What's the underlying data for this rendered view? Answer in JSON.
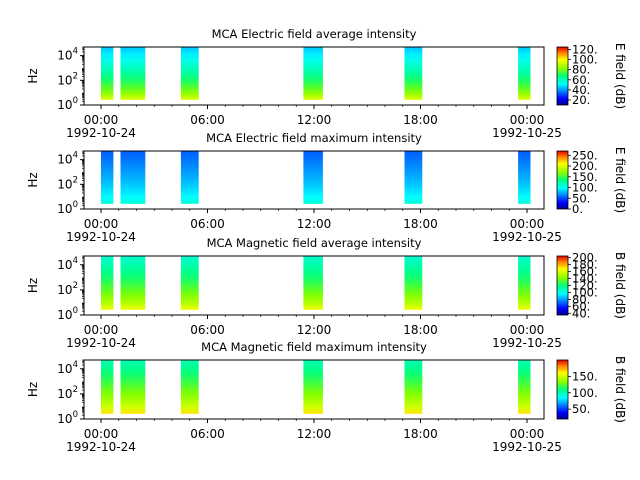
{
  "figure": {
    "x_ticks": [
      "00:00",
      "06:00",
      "12:00",
      "18:00",
      "00:00"
    ],
    "date_start": "1992-10-24",
    "date_end": "1992-10-25",
    "x_unit": "hours"
  },
  "chart_data": [
    {
      "type": "heatmap",
      "title": "MCA  Electric field average intensity",
      "ylabel": "Hz",
      "y_scale": "log",
      "ylim": [
        1,
        50000
      ],
      "y_ticks": [
        {
          "base": "10",
          "exp": "0"
        },
        {
          "base": "10",
          "exp": "2"
        },
        {
          "base": "10",
          "exp": "4"
        }
      ],
      "xlim": [
        0,
        25
      ],
      "segments_hours": [
        [
          0.0,
          0.7
        ],
        [
          1.1,
          2.5
        ],
        [
          4.5,
          5.5
        ],
        [
          11.4,
          12.5
        ],
        [
          17.1,
          18.1
        ],
        [
          23.5,
          24.2
        ]
      ],
      "colorbar_label": "E field (dB)",
      "colorbar_range": [
        10,
        125
      ],
      "colorbar_ticks": [
        "120.",
        "100.",
        "80.",
        "60.",
        "40.",
        "20."
      ],
      "intensity_low_freq": 95,
      "intensity_high_freq": 45
    },
    {
      "type": "heatmap",
      "title": "MCA  Electric field maximum intensity",
      "ylabel": "Hz",
      "y_scale": "log",
      "ylim": [
        1,
        50000
      ],
      "y_ticks": [
        {
          "base": "10",
          "exp": "0"
        },
        {
          "base": "10",
          "exp": "2"
        },
        {
          "base": "10",
          "exp": "4"
        }
      ],
      "xlim": [
        0,
        25
      ],
      "segments_hours": [
        [
          0.0,
          0.7
        ],
        [
          1.1,
          2.5
        ],
        [
          4.5,
          5.5
        ],
        [
          11.4,
          12.5
        ],
        [
          17.1,
          18.1
        ],
        [
          23.5,
          24.2
        ]
      ],
      "colorbar_label": "E field (dB)",
      "colorbar_range": [
        0,
        270
      ],
      "colorbar_ticks": [
        "250.",
        "200.",
        "150.",
        "100.",
        "50.",
        "0."
      ],
      "intensity_low_freq": 110,
      "intensity_high_freq": 55
    },
    {
      "type": "heatmap",
      "title": "MCA  Magnetic field average intensity",
      "ylabel": "Hz",
      "y_scale": "log",
      "ylim": [
        1,
        50000
      ],
      "y_ticks": [
        {
          "base": "10",
          "exp": "0"
        },
        {
          "base": "10",
          "exp": "2"
        },
        {
          "base": "10",
          "exp": "4"
        }
      ],
      "xlim": [
        0,
        25
      ],
      "segments_hours": [
        [
          0.0,
          0.7
        ],
        [
          1.1,
          2.5
        ],
        [
          4.5,
          5.5
        ],
        [
          11.4,
          12.5
        ],
        [
          17.1,
          18.1
        ],
        [
          23.5,
          24.2
        ]
      ],
      "colorbar_label": "B field (dB)",
      "colorbar_range": [
        35,
        205
      ],
      "colorbar_ticks": [
        "200.",
        "180.",
        "160.",
        "140.",
        "120.",
        "100.",
        "80.",
        "60.",
        "40."
      ],
      "intensity_low_freq": 165,
      "intensity_high_freq": 105
    },
    {
      "type": "heatmap",
      "title": "MCA  Magnetic field maximum intensity",
      "ylabel": "Hz",
      "y_scale": "log",
      "ylim": [
        1,
        50000
      ],
      "y_ticks": [
        {
          "base": "10",
          "exp": "0"
        },
        {
          "base": "10",
          "exp": "2"
        },
        {
          "base": "10",
          "exp": "4"
        }
      ],
      "xlim": [
        0,
        25
      ],
      "segments_hours": [
        [
          0.0,
          0.7
        ],
        [
          1.1,
          2.5
        ],
        [
          4.5,
          5.5
        ],
        [
          11.4,
          12.5
        ],
        [
          17.1,
          18.1
        ],
        [
          23.5,
          24.2
        ]
      ],
      "colorbar_label": "B field (dB)",
      "colorbar_range": [
        20,
        200
      ],
      "colorbar_ticks": [
        "150.",
        "100.",
        "50."
      ],
      "intensity_low_freq": 165,
      "intensity_high_freq": 100
    }
  ]
}
